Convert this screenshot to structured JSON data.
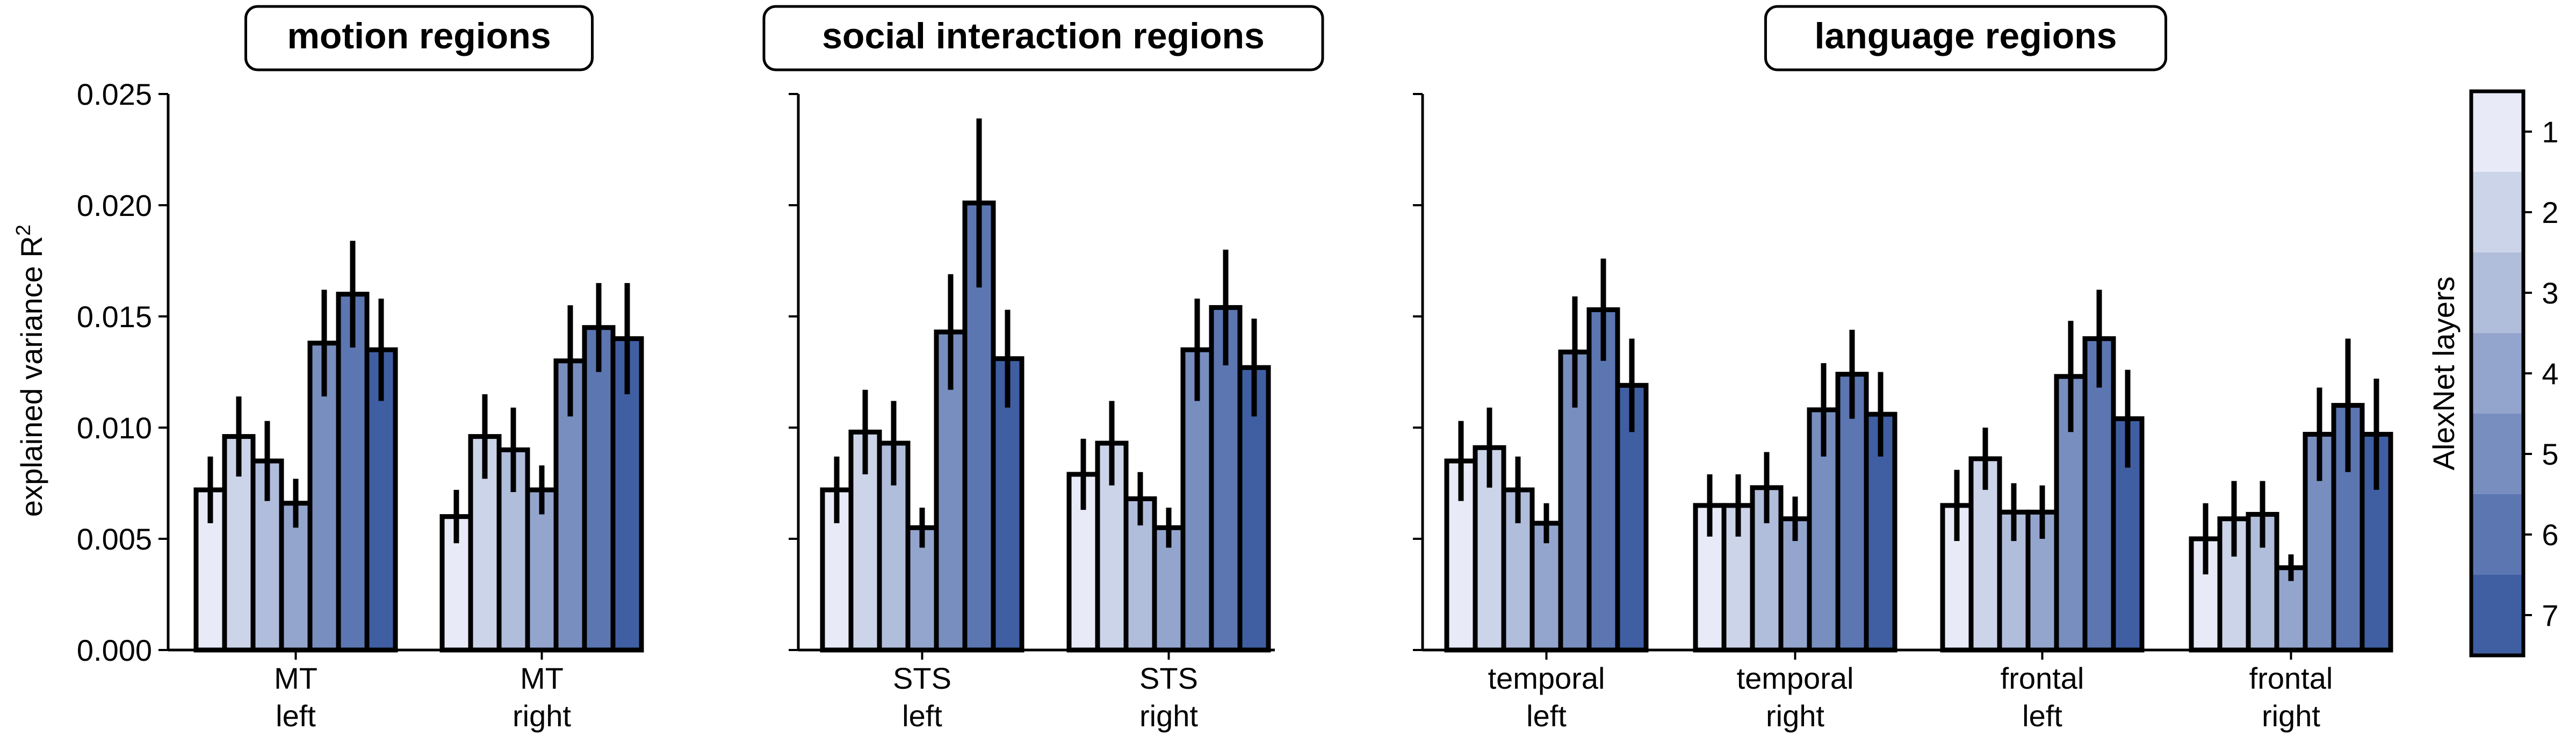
{
  "shared": {
    "ylabel": "explained variance R",
    "ylabel_sup": "2",
    "ylim": [
      0,
      0.025
    ],
    "yticks": [
      "0.000",
      "0.005",
      "0.010",
      "0.015",
      "0.020",
      "0.025"
    ],
    "ytick_values": [
      0,
      0.005,
      0.01,
      0.015,
      0.02,
      0.025
    ],
    "grid": false
  },
  "layer_colors": [
    "#e8ebf7",
    "#ccd4e9",
    "#b0bddb",
    "#94a5cd",
    "#788ebf",
    "#5c76b1",
    "#405fa3"
  ],
  "colorbar": {
    "label": "AlexNet layers",
    "ticks": [
      "1",
      "2",
      "3",
      "4",
      "5",
      "6",
      "7"
    ]
  },
  "chart_data": [
    {
      "type": "bar",
      "title": "motion regions",
      "categories": [
        [
          "MT",
          "left"
        ],
        [
          "MT",
          "right"
        ]
      ],
      "series": [
        {
          "values": [
            0.0072,
            0.006
          ],
          "err": [
            0.0015,
            0.0012
          ]
        },
        {
          "values": [
            0.0096,
            0.0096
          ],
          "err": [
            0.0018,
            0.0019
          ]
        },
        {
          "values": [
            0.0085,
            0.009
          ],
          "err": [
            0.0018,
            0.0019
          ]
        },
        {
          "values": [
            0.0066,
            0.0072
          ],
          "err": [
            0.0011,
            0.0011
          ]
        },
        {
          "values": [
            0.0138,
            0.013
          ],
          "err": [
            0.0024,
            0.0025
          ]
        },
        {
          "values": [
            0.016,
            0.0145
          ],
          "err": [
            0.0024,
            0.002
          ]
        },
        {
          "values": [
            0.0135,
            0.014
          ],
          "err": [
            0.0023,
            0.0025
          ]
        }
      ]
    },
    {
      "type": "bar",
      "title": "social interaction regions",
      "categories": [
        [
          "STS",
          "left"
        ],
        [
          "STS",
          "right"
        ]
      ],
      "series": [
        {
          "values": [
            0.0072,
            0.0079
          ],
          "err": [
            0.0015,
            0.0016
          ]
        },
        {
          "values": [
            0.0098,
            0.0093
          ],
          "err": [
            0.0019,
            0.0019
          ]
        },
        {
          "values": [
            0.0093,
            0.0068
          ],
          "err": [
            0.0019,
            0.0012
          ]
        },
        {
          "values": [
            0.0055,
            0.0055
          ],
          "err": [
            0.0009,
            0.0009
          ]
        },
        {
          "values": [
            0.0143,
            0.0135
          ],
          "err": [
            0.0026,
            0.0023
          ]
        },
        {
          "values": [
            0.0201,
            0.0154
          ],
          "err": [
            0.0038,
            0.0026
          ]
        },
        {
          "values": [
            0.0131,
            0.0127
          ],
          "err": [
            0.0022,
            0.0022
          ]
        }
      ]
    },
    {
      "type": "bar",
      "title": "language regions",
      "categories": [
        [
          "temporal",
          "left"
        ],
        [
          "temporal",
          "right"
        ],
        [
          "frontal",
          "left"
        ],
        [
          "frontal",
          "right"
        ]
      ],
      "series": [
        {
          "values": [
            0.0085,
            0.0065,
            0.0065,
            0.005
          ],
          "err": [
            0.0018,
            0.0014,
            0.0016,
            0.0016
          ]
        },
        {
          "values": [
            0.0091,
            0.0065,
            0.0086,
            0.0059
          ],
          "err": [
            0.0018,
            0.0014,
            0.0014,
            0.0017
          ]
        },
        {
          "values": [
            0.0072,
            0.0073,
            0.0062,
            0.0061
          ],
          "err": [
            0.0015,
            0.0016,
            0.0013,
            0.0015
          ]
        },
        {
          "values": [
            0.0057,
            0.0059,
            0.0062,
            0.0037
          ],
          "err": [
            0.0009,
            0.001,
            0.0012,
            0.0006
          ]
        },
        {
          "values": [
            0.0134,
            0.0108,
            0.0123,
            0.0097
          ],
          "err": [
            0.0025,
            0.0021,
            0.0025,
            0.0021
          ]
        },
        {
          "values": [
            0.0153,
            0.0124,
            0.014,
            0.011
          ],
          "err": [
            0.0023,
            0.002,
            0.0022,
            0.003
          ]
        },
        {
          "values": [
            0.0119,
            0.0106,
            0.0104,
            0.0097
          ],
          "err": [
            0.0021,
            0.0019,
            0.0022,
            0.0025
          ]
        }
      ]
    }
  ]
}
